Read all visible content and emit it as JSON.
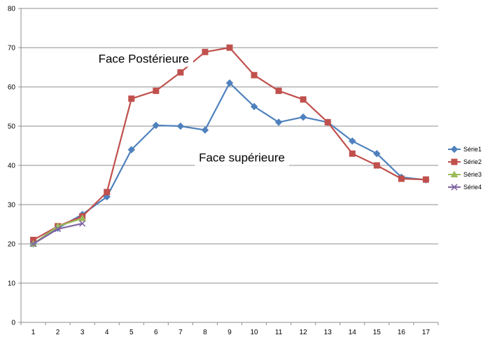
{
  "chart_data": {
    "type": "line",
    "x": [
      1,
      2,
      3,
      4,
      5,
      6,
      7,
      8,
      9,
      10,
      11,
      12,
      13,
      14,
      15,
      16,
      17
    ],
    "xlim": [
      1,
      17
    ],
    "ylim": [
      0,
      80
    ],
    "yticks": [
      0,
      10,
      20,
      30,
      40,
      50,
      60,
      70,
      80
    ],
    "grid": true,
    "legend_position": "right",
    "series": [
      {
        "name": "Série1",
        "color": "#4F81BD",
        "marker": "diamond",
        "values": [
          20,
          24,
          27.5,
          32,
          44,
          50.2,
          50,
          49,
          61,
          55,
          51,
          52.3,
          51,
          46.2,
          43,
          37,
          36.3
        ]
      },
      {
        "name": "Série2",
        "color": "#C0504D",
        "marker": "square",
        "values": [
          21,
          24.5,
          27,
          33.2,
          57,
          59,
          63.7,
          68.9,
          70,
          63,
          59,
          56.8,
          51,
          43,
          40,
          36.6,
          36.4
        ]
      },
      {
        "name": "Série3",
        "color": "#9BBB59",
        "marker": "triangle",
        "values": [
          20,
          24.5,
          26.5,
          null,
          null,
          null,
          null,
          null,
          null,
          null,
          null,
          null,
          null,
          null,
          null,
          null,
          null
        ]
      },
      {
        "name": "Série4",
        "color": "#8064A2",
        "marker": "x",
        "values": [
          20,
          23.8,
          25.2,
          null,
          null,
          null,
          null,
          null,
          null,
          null,
          null,
          null,
          null,
          null,
          null,
          null,
          null
        ]
      }
    ],
    "annotations": [
      {
        "text": "Face Postérieure",
        "x": 5.5,
        "y": 66.2
      },
      {
        "text": "Face supérieure",
        "x": 9.5,
        "y": 41
      }
    ]
  }
}
